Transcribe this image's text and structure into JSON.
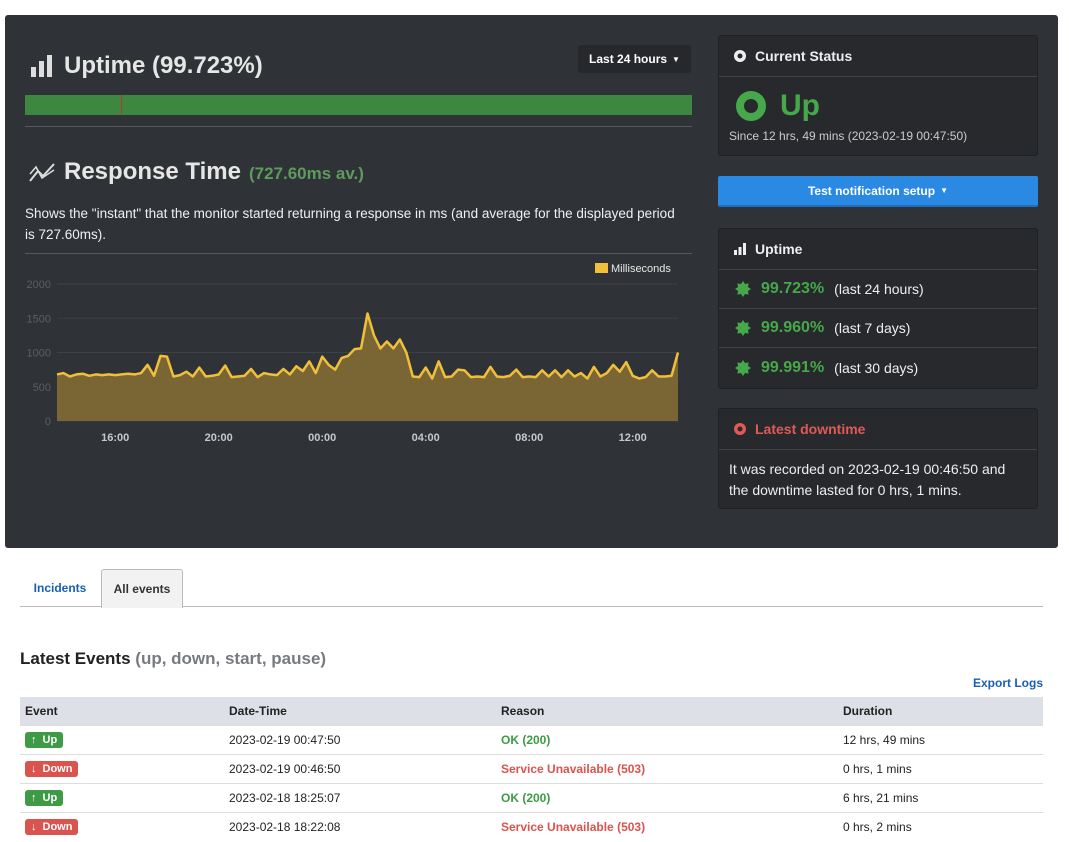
{
  "uptime_section": {
    "title": "Uptime (99.723%)",
    "range_button": "Last 24 hours",
    "downtime_marker_fraction": 0.144
  },
  "response_section": {
    "title": "Response Time",
    "average": "(727.60ms av.)",
    "description": "Shows the \"instant\" that the monitor started returning a response in ms (and average for the displayed period is 727.60ms)."
  },
  "chart_data": {
    "type": "area",
    "title": "",
    "xlabel": "",
    "ylabel": "",
    "legend": {
      "label": "Milliseconds",
      "placement": "top-right"
    },
    "ylim": [
      0,
      2000
    ],
    "y_ticks": [
      "0",
      "500",
      "1000",
      "1500",
      "2000"
    ],
    "x_interval_minutes": 15,
    "x_start": "13:45",
    "x_ticks": [
      {
        "label": "16:00",
        "index": 9
      },
      {
        "label": "20:00",
        "index": 25
      },
      {
        "label": "00:00",
        "index": 41
      },
      {
        "label": "04:00",
        "index": 57
      },
      {
        "label": "08:00",
        "index": 73
      },
      {
        "label": "12:00",
        "index": 89
      }
    ],
    "series": [
      {
        "name": "Milliseconds",
        "color": "#f0c03a",
        "values": [
          680,
          700,
          650,
          680,
          690,
          660,
          680,
          670,
          680,
          670,
          680,
          690,
          680,
          700,
          820,
          660,
          950,
          940,
          650,
          670,
          720,
          650,
          780,
          650,
          660,
          680,
          810,
          640,
          650,
          660,
          760,
          640,
          700,
          680,
          670,
          760,
          680,
          800,
          730,
          870,
          700,
          940,
          820,
          750,
          920,
          950,
          1050,
          1060,
          1570,
          1250,
          1060,
          1160,
          1060,
          1190,
          1000,
          650,
          640,
          780,
          620,
          870,
          640,
          650,
          750,
          740,
          640,
          650,
          640,
          790,
          650,
          640,
          660,
          750,
          640,
          650,
          640,
          740,
          650,
          740,
          640,
          740,
          650,
          700,
          620,
          790,
          650,
          700,
          820,
          720,
          860,
          660,
          620,
          640,
          740,
          650,
          650,
          660,
          1000
        ]
      }
    ]
  },
  "current_status": {
    "title": "Current Status",
    "status": "Up",
    "since": "Since 12 hrs, 49 mins (2023-02-19 00:47:50)"
  },
  "test_button": "Test notification setup",
  "uptime_box": {
    "title": "Uptime",
    "rows": [
      {
        "pct": "99.723%",
        "period": "(last 24 hours)"
      },
      {
        "pct": "99.960%",
        "period": "(last 7 days)"
      },
      {
        "pct": "99.991%",
        "period": "(last 30 days)"
      }
    ]
  },
  "latest_downtime": {
    "title": "Latest downtime",
    "text": "It was recorded on 2023-02-19 00:46:50 and the downtime lasted for 0 hrs, 1 mins."
  },
  "tabs": [
    {
      "label": "Incidents"
    },
    {
      "label": "All events"
    }
  ],
  "events": {
    "title": "Latest Events",
    "subtitle": "(up, down, start, pause)",
    "export": "Export Logs",
    "columns": [
      "Event",
      "Date-Time",
      "Reason",
      "Duration"
    ],
    "rows": [
      {
        "event": "Up",
        "type": "up",
        "datetime": "2023-02-19 00:47:50",
        "reason": "OK (200)",
        "duration": "12 hrs, 49 mins"
      },
      {
        "event": "Down",
        "type": "down",
        "datetime": "2023-02-19 00:46:50",
        "reason": "Service Unavailable (503)",
        "duration": "0 hrs, 1 mins"
      },
      {
        "event": "Up",
        "type": "up",
        "datetime": "2023-02-18 18:25:07",
        "reason": "OK (200)",
        "duration": "6 hrs, 21 mins"
      },
      {
        "event": "Down",
        "type": "down",
        "datetime": "2023-02-18 18:22:08",
        "reason": "Service Unavailable (503)",
        "duration": "0 hrs, 2 mins"
      }
    ]
  }
}
